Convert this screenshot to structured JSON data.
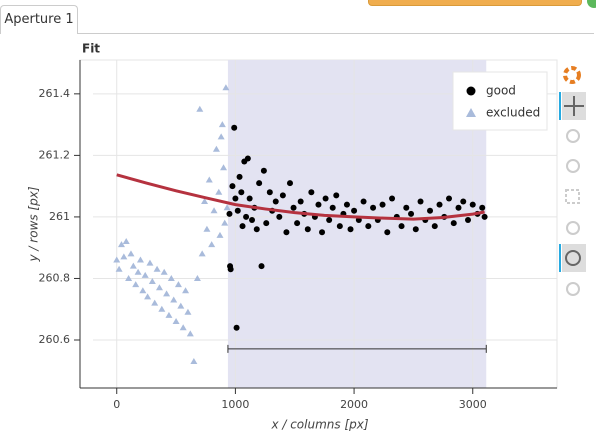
{
  "tab": {
    "label": "Aperture 1"
  },
  "chart_data": {
    "type": "scatter",
    "title": "Fit",
    "x_label": "x / columns [px]",
    "y_label": "y / rows [px]",
    "xlim": [
      -200,
      3710
    ],
    "ylim": [
      260.444,
      261.51
    ],
    "xticks": [
      0,
      1000,
      2000,
      3000
    ],
    "yticks": [
      260.6,
      260.8,
      261,
      261.2,
      261.4
    ],
    "grid": true,
    "legend": "top-right",
    "region": {
      "x": [
        937,
        3114
      ],
      "color": "#e3e3f2"
    },
    "errorbar": {
      "y": 260.571,
      "x": [
        937,
        3114
      ],
      "color": "#333333"
    },
    "fit": {
      "color": "#b5323f",
      "x": [
        0,
        250,
        500,
        750,
        1000,
        1250,
        1500,
        1750,
        2000,
        2250,
        2500,
        2750,
        3000,
        3100
      ],
      "values": [
        261.137,
        261.11,
        261.085,
        261.062,
        261.04,
        261.026,
        261.014,
        261.005,
        261.0,
        260.996,
        260.993,
        260.998,
        261.009,
        261.016
      ]
    },
    "series": [
      {
        "name": "good",
        "color": "#000000",
        "marker": "circle",
        "x": [
          950,
          955,
          960,
          975,
          990,
          1000,
          1010,
          1020,
          1035,
          1050,
          1060,
          1075,
          1090,
          1105,
          1120,
          1140,
          1160,
          1180,
          1200,
          1220,
          1240,
          1260,
          1290,
          1310,
          1340,
          1370,
          1400,
          1430,
          1460,
          1490,
          1520,
          1550,
          1580,
          1610,
          1640,
          1670,
          1700,
          1730,
          1760,
          1790,
          1820,
          1850,
          1880,
          1910,
          1940,
          1970,
          2000,
          2040,
          2080,
          2120,
          2160,
          2200,
          2240,
          2280,
          2320,
          2360,
          2400,
          2440,
          2480,
          2520,
          2560,
          2600,
          2640,
          2680,
          2720,
          2760,
          2800,
          2840,
          2880,
          2920,
          2960,
          3000,
          3040,
          3080,
          3100
        ],
        "values": [
          261.01,
          260.84,
          260.83,
          261.1,
          261.29,
          261.06,
          260.64,
          261.02,
          261.13,
          261.08,
          260.97,
          261.18,
          261.0,
          261.19,
          261.06,
          260.99,
          261.03,
          260.96,
          261.11,
          260.84,
          261.15,
          260.98,
          261.08,
          261.02,
          261.05,
          261.0,
          261.07,
          260.95,
          261.11,
          261.03,
          260.98,
          261.05,
          261.01,
          260.96,
          261.08,
          261.0,
          261.04,
          260.95,
          261.06,
          260.99,
          261.03,
          261.07,
          260.97,
          261.01,
          261.04,
          260.96,
          261.02,
          260.99,
          261.05,
          260.97,
          261.03,
          260.99,
          261.04,
          260.95,
          261.06,
          261.0,
          260.97,
          261.03,
          261.01,
          260.96,
          261.05,
          260.99,
          261.02,
          260.97,
          261.04,
          261.0,
          261.06,
          260.98,
          261.03,
          261.05,
          260.99,
          261.04,
          261.01,
          261.03,
          261.0
        ]
      },
      {
        "name": "excluded",
        "color": "#a9bbdb",
        "marker": "triangle",
        "x": [
          0,
          20,
          40,
          60,
          80,
          100,
          120,
          140,
          160,
          180,
          200,
          220,
          240,
          260,
          280,
          300,
          320,
          340,
          360,
          380,
          400,
          420,
          440,
          460,
          480,
          500,
          520,
          540,
          560,
          580,
          600,
          620,
          650,
          680,
          700,
          720,
          740,
          760,
          780,
          800,
          820,
          840,
          860,
          880,
          900,
          920,
          930,
          910,
          890,
          870
        ],
        "values": [
          260.86,
          260.83,
          260.91,
          260.87,
          260.92,
          260.8,
          260.88,
          260.84,
          260.78,
          260.82,
          260.86,
          260.76,
          260.81,
          260.74,
          260.85,
          260.79,
          260.72,
          260.83,
          260.77,
          260.7,
          260.82,
          260.75,
          260.68,
          260.8,
          260.73,
          260.66,
          260.78,
          260.71,
          260.64,
          260.76,
          260.69,
          260.62,
          260.53,
          260.8,
          261.35,
          260.88,
          261.05,
          260.96,
          261.12,
          260.91,
          261.02,
          261.22,
          261.08,
          261.26,
          261.16,
          261.42,
          261.03,
          260.98,
          261.3,
          260.94
        ]
      }
    ]
  }
}
